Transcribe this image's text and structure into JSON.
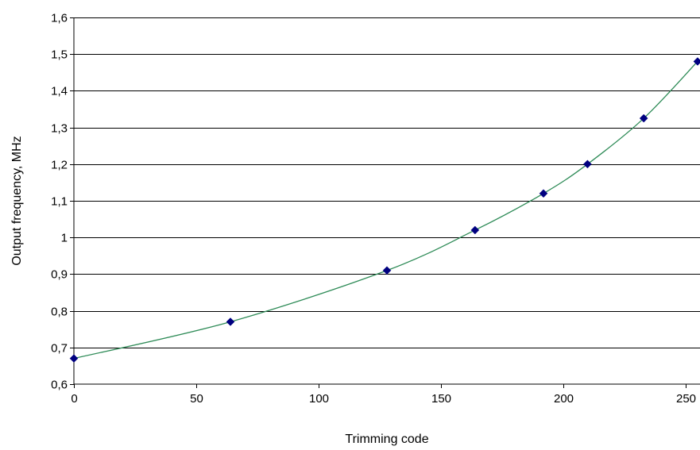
{
  "chart_data": {
    "type": "scatter",
    "title": "",
    "xlabel": "Trimming code",
    "ylabel": "Output frequency, MHz",
    "xlim": [
      0,
      256
    ],
    "ylim": [
      0.6,
      1.6
    ],
    "x_ticks": [
      {
        "value": 0,
        "label": "0"
      },
      {
        "value": 50,
        "label": "50"
      },
      {
        "value": 100,
        "label": "100"
      },
      {
        "value": 150,
        "label": "150"
      },
      {
        "value": 200,
        "label": "200"
      },
      {
        "value": 250,
        "label": "250"
      }
    ],
    "y_ticks": [
      {
        "value": 0.6,
        "label": "0,6"
      },
      {
        "value": 0.7,
        "label": "0,7"
      },
      {
        "value": 0.8,
        "label": "0,8"
      },
      {
        "value": 0.9,
        "label": "0,9"
      },
      {
        "value": 1.0,
        "label": "1"
      },
      {
        "value": 1.1,
        "label": "1,1"
      },
      {
        "value": 1.2,
        "label": "1,2"
      },
      {
        "value": 1.3,
        "label": "1,3"
      },
      {
        "value": 1.4,
        "label": "1,4"
      },
      {
        "value": 1.5,
        "label": "1,5"
      },
      {
        "value": 1.6,
        "label": "1,6"
      }
    ],
    "grid": "horizontal",
    "smoothed_line": true,
    "series": [
      {
        "marker": "diamond",
        "marker_color": "#000080",
        "line_color": "#2e8b57",
        "points": [
          {
            "x": 0,
            "y": 0.67
          },
          {
            "x": 64,
            "y": 0.77
          },
          {
            "x": 128,
            "y": 0.91
          },
          {
            "x": 164,
            "y": 1.02
          },
          {
            "x": 192,
            "y": 1.12
          },
          {
            "x": 210,
            "y": 1.2
          },
          {
            "x": 233,
            "y": 1.325
          },
          {
            "x": 255,
            "y": 1.48
          }
        ]
      }
    ]
  }
}
